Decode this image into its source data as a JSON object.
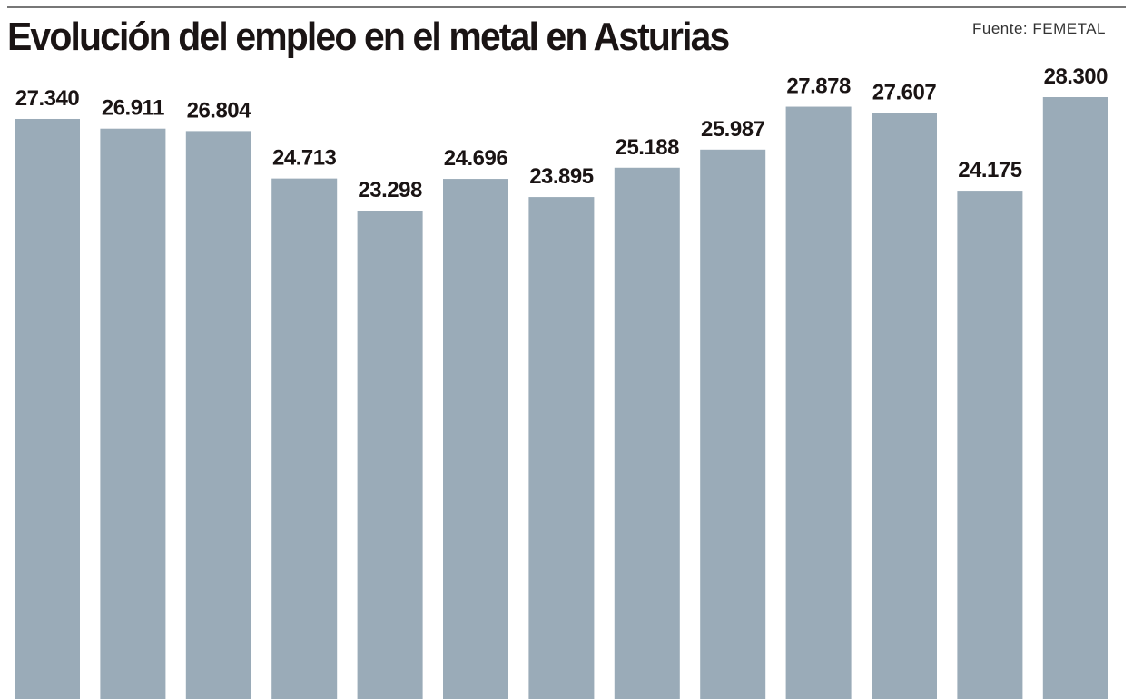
{
  "chart_data": {
    "type": "bar",
    "title": "Evolución del empleo en el metal en Asturias",
    "source": "Fuente: FEMETAL",
    "categories": [],
    "values": [
      27340,
      26911,
      26804,
      24713,
      23298,
      24696,
      23895,
      25188,
      25987,
      27878,
      27607,
      24175,
      28300
    ],
    "labels": [
      "27.340",
      "26.911",
      "26.804",
      "24.713",
      "23.298",
      "24.696",
      "23.895",
      "25.188",
      "25.987",
      "27.878",
      "27.607",
      "24.175",
      "28.300"
    ],
    "xlabel": "",
    "ylabel": "",
    "ylim": [
      1770,
      28300
    ],
    "grid": false,
    "bar_color": "#9aabb8"
  }
}
